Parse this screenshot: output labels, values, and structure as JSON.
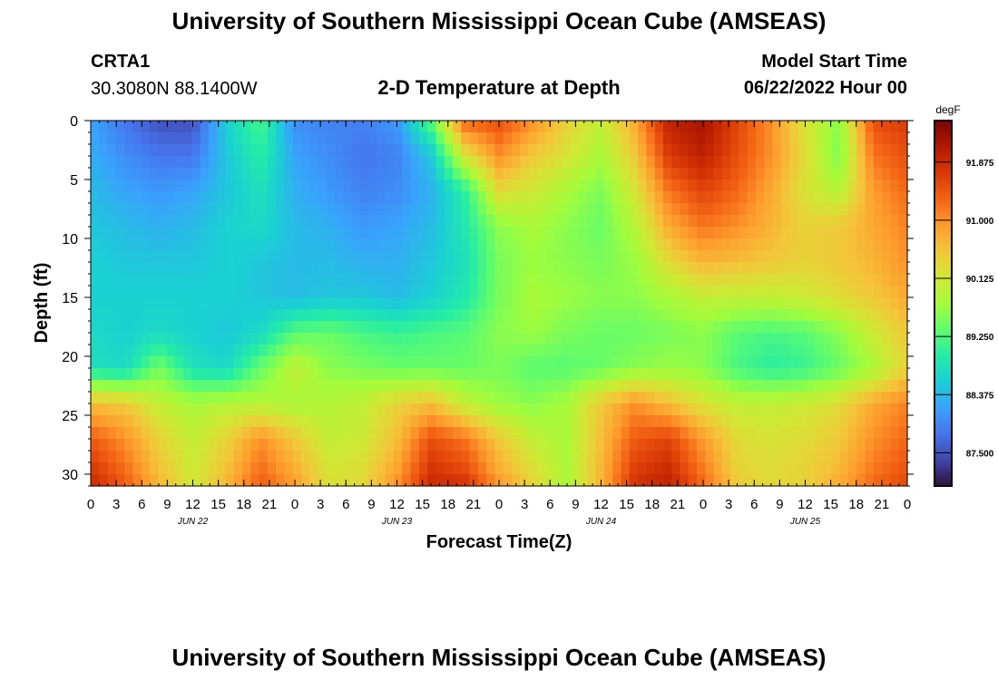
{
  "page": {
    "title": "University of Southern Mississippi Ocean Cube (AMSEAS)",
    "title_repeat": "University of Southern Mississippi Ocean Cube (AMSEAS)",
    "station_id": "CRTA1",
    "station_coords": "30.3080N  88.1400W",
    "model_start_label": "Model Start Time",
    "model_start_value": "06/22/2022 Hour 00"
  },
  "chart_data": {
    "type": "heatmap",
    "title": "2-D Temperature at Depth",
    "xlabel": "Forecast Time(Z)",
    "ylabel": "Depth (ft)",
    "colorbar_label": "degF",
    "x_hours": [
      0,
      96
    ],
    "x_ticks": [
      "0",
      "3",
      "6",
      "9",
      "12",
      "15",
      "18",
      "21",
      "0",
      "3",
      "6",
      "9",
      "12",
      "15",
      "18",
      "21",
      "0",
      "3",
      "6",
      "9",
      "12",
      "15",
      "18",
      "21",
      "0",
      "3",
      "6",
      "9",
      "12",
      "15",
      "18",
      "21",
      "0"
    ],
    "day_labels": [
      "JUN 22",
      "JUN 23",
      "JUN 24",
      "JUN 25"
    ],
    "y_range": [
      0,
      31
    ],
    "y_ticks": [
      "0",
      "5",
      "10",
      "15",
      "20",
      "25",
      "30"
    ],
    "y_tick_values": [
      0,
      5,
      10,
      15,
      20,
      25,
      30
    ],
    "value_range": [
      87.0,
      92.5
    ],
    "colorbar_ticks": [
      "91.875",
      "91.000",
      "90.125",
      "89.250",
      "88.375",
      "87.500"
    ],
    "colorbar_tick_values": [
      91.875,
      91.0,
      90.125,
      89.25,
      88.375,
      87.5
    ],
    "colormap": [
      "#30123b",
      "#4145ab",
      "#4675ed",
      "#39a2fc",
      "#1bcfd4",
      "#24eca6",
      "#61fc6c",
      "#a4fc3b",
      "#d1e834",
      "#f3c63a",
      "#fe9b2d",
      "#f36315",
      "#d93806",
      "#b11901",
      "#7a0403"
    ],
    "grid_time_hours": [
      0,
      4,
      8,
      12,
      16,
      20,
      24,
      28,
      32,
      36,
      40,
      44,
      48,
      52,
      56,
      60,
      64,
      68,
      72,
      76,
      80,
      84,
      88,
      92,
      96
    ],
    "grid_depth_ft": [
      0,
      3,
      6,
      9,
      12,
      15,
      18,
      21,
      24,
      27,
      30,
      31
    ],
    "grid_values": [
      [
        88.2,
        87.8,
        87.5,
        87.5,
        88.6,
        89.2,
        88.0,
        87.9,
        87.9,
        88.1,
        89.3,
        91.3,
        91.5,
        91.0,
        90.4,
        90.0,
        90.8,
        92.0,
        92.2,
        91.6,
        91.0,
        90.2,
        89.6,
        91.5,
        91.7
      ],
      [
        88.3,
        88.0,
        87.8,
        87.8,
        88.5,
        89.0,
        88.2,
        88.0,
        87.8,
        87.9,
        88.5,
        90.2,
        91.0,
        90.5,
        90.2,
        89.8,
        90.5,
        91.7,
        92.0,
        91.5,
        91.0,
        90.3,
        89.5,
        91.2,
        91.5
      ],
      [
        88.4,
        88.2,
        88.1,
        88.2,
        88.5,
        88.8,
        88.3,
        88.1,
        87.9,
        88.0,
        88.3,
        89.0,
        90.3,
        90.1,
        89.8,
        89.5,
        90.2,
        91.2,
        91.6,
        91.3,
        90.8,
        90.2,
        89.9,
        90.9,
        91.3
      ],
      [
        88.5,
        88.4,
        88.3,
        88.4,
        88.6,
        88.7,
        88.4,
        88.3,
        88.1,
        88.2,
        88.4,
        88.9,
        89.6,
        89.8,
        89.6,
        89.4,
        89.9,
        90.8,
        91.2,
        91.0,
        90.7,
        90.4,
        90.5,
        90.8,
        91.1
      ],
      [
        88.6,
        88.5,
        88.5,
        88.5,
        88.6,
        88.5,
        88.4,
        88.4,
        88.3,
        88.3,
        88.5,
        88.8,
        89.5,
        89.7,
        89.6,
        89.5,
        89.7,
        90.3,
        90.7,
        90.6,
        90.5,
        90.4,
        90.5,
        90.7,
        91.0
      ],
      [
        88.6,
        88.6,
        88.6,
        88.6,
        88.6,
        88.5,
        88.4,
        88.5,
        88.5,
        88.4,
        88.6,
        88.9,
        89.5,
        89.8,
        89.7,
        89.6,
        89.6,
        89.8,
        90.0,
        90.0,
        90.0,
        90.1,
        90.3,
        90.5,
        90.8
      ],
      [
        88.7,
        88.6,
        88.7,
        88.6,
        88.5,
        88.7,
        89.3,
        89.4,
        89.2,
        89.1,
        89.2,
        89.3,
        89.6,
        89.7,
        89.5,
        89.4,
        89.4,
        89.5,
        89.6,
        89.3,
        89.2,
        89.3,
        89.6,
        90.1,
        90.5
      ],
      [
        88.8,
        88.7,
        89.5,
        88.8,
        88.7,
        89.4,
        90.0,
        89.6,
        89.5,
        89.4,
        89.4,
        89.4,
        89.5,
        89.3,
        89.3,
        89.4,
        89.6,
        89.7,
        89.6,
        89.2,
        89.0,
        89.1,
        89.4,
        89.8,
        90.4
      ],
      [
        90.6,
        90.5,
        90.0,
        89.8,
        89.9,
        89.9,
        89.8,
        89.9,
        90.0,
        90.4,
        90.6,
        90.0,
        89.7,
        89.6,
        89.8,
        90.5,
        91.0,
        90.6,
        90.2,
        90.0,
        90.0,
        90.1,
        90.3,
        90.8,
        91.1
      ],
      [
        91.4,
        91.0,
        90.4,
        90.0,
        90.4,
        91.0,
        90.5,
        90.0,
        90.1,
        90.6,
        91.5,
        91.2,
        90.5,
        90.0,
        89.8,
        90.6,
        91.4,
        91.6,
        90.9,
        90.3,
        90.2,
        90.3,
        90.5,
        91.0,
        91.3
      ],
      [
        91.8,
        91.3,
        90.6,
        90.1,
        90.6,
        91.3,
        90.8,
        90.2,
        90.3,
        90.9,
        91.8,
        91.6,
        90.8,
        90.3,
        89.8,
        90.7,
        91.7,
        91.9,
        91.2,
        90.4,
        90.3,
        90.4,
        90.7,
        91.2,
        91.5
      ],
      [
        91.9,
        91.4,
        90.7,
        90.1,
        90.7,
        91.4,
        90.9,
        90.2,
        90.3,
        91.0,
        91.9,
        91.8,
        91.0,
        90.4,
        89.8,
        90.7,
        91.8,
        92.0,
        91.3,
        90.5,
        90.3,
        90.4,
        90.8,
        91.3,
        91.6
      ]
    ]
  }
}
